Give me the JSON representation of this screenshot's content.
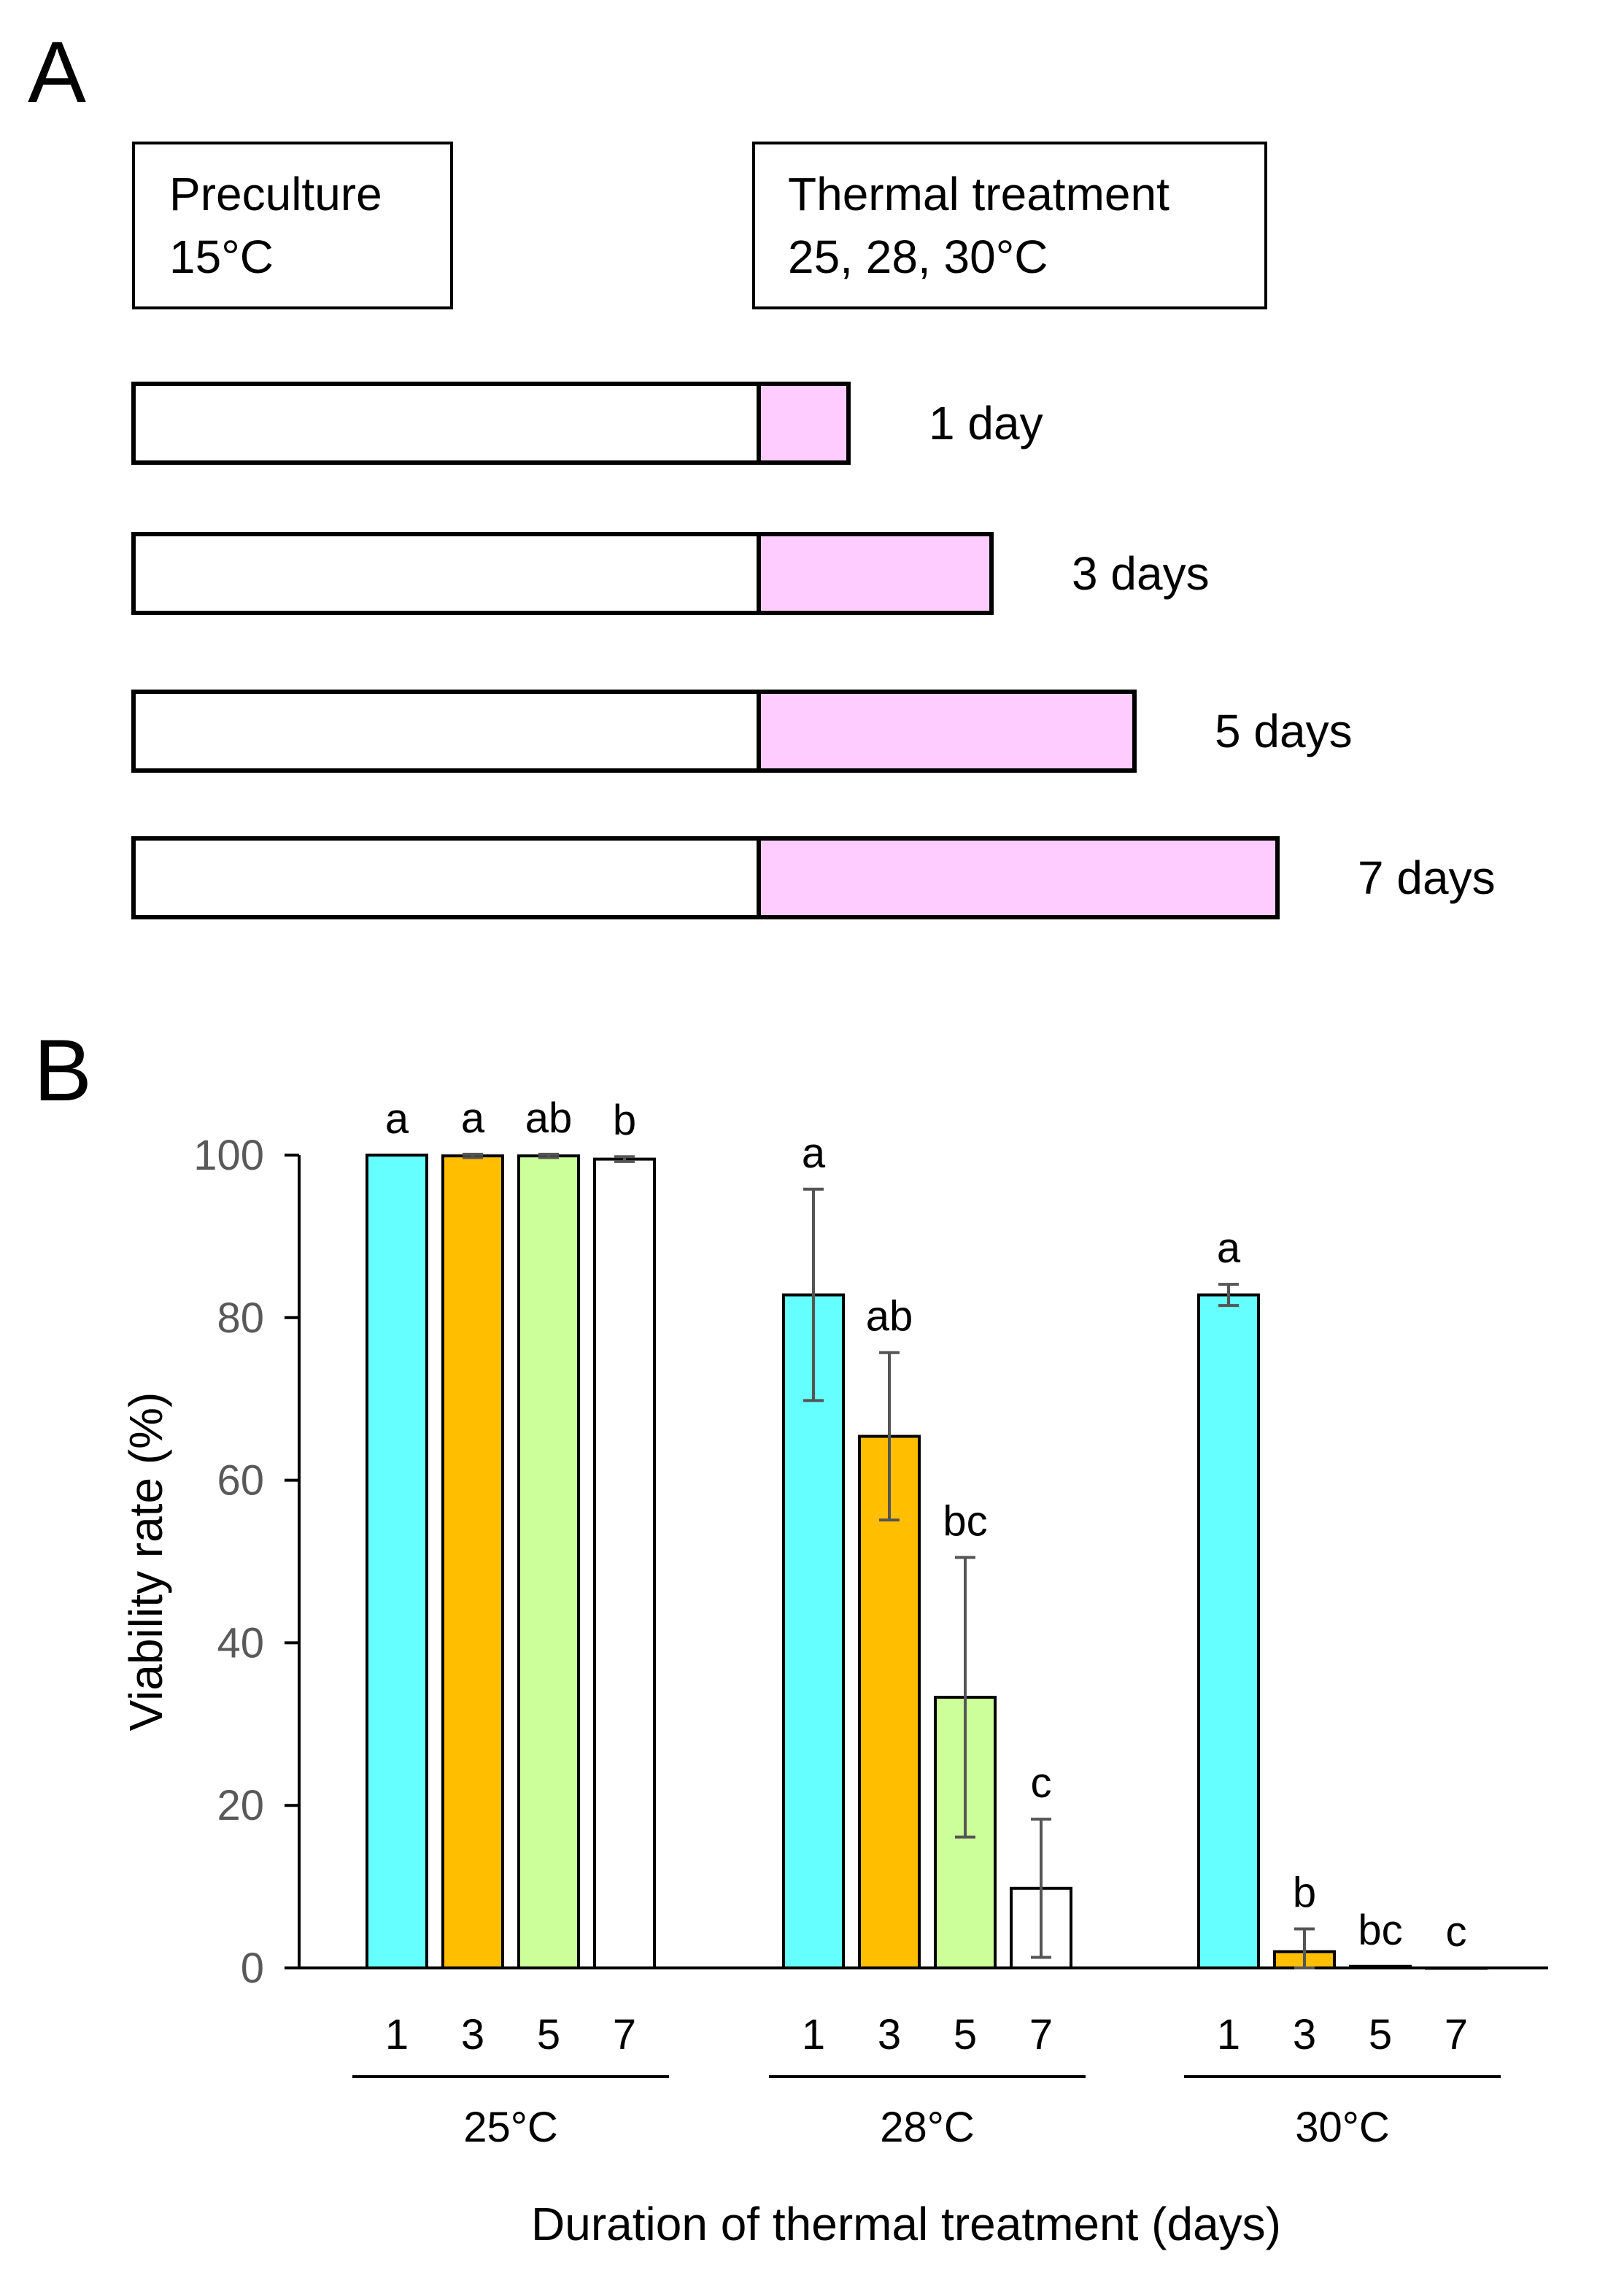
{
  "panel_a": {
    "label": "A",
    "preculture": {
      "line1": "Preculture",
      "line2": "15°C"
    },
    "thermal": {
      "line1": "Thermal treatment",
      "line2": "25, 28, 30°C"
    },
    "timeline": [
      {
        "days": 1,
        "label": "1 day"
      },
      {
        "days": 3,
        "label": "3 days"
      },
      {
        "days": 5,
        "label": "5 days"
      },
      {
        "days": 7,
        "label": "7 days"
      }
    ],
    "colors": {
      "preculture": "#ffffff",
      "thermal": "#ffccff"
    }
  },
  "chart_data": {
    "panel_label": "B",
    "type": "bar",
    "ylabel": "Viability rate (%)",
    "xlabel": "Duration of thermal treatment (days)",
    "ylim": [
      0,
      100
    ],
    "yticks": [
      0,
      20,
      40,
      60,
      80,
      100
    ],
    "duration_labels": [
      "1",
      "3",
      "5",
      "7"
    ],
    "duration_colors": [
      "#66ffff",
      "#ffbf00",
      "#ccff99",
      "#ffffff"
    ],
    "groups": [
      {
        "name": "25°C",
        "values": [
          100,
          99.9,
          99.9,
          99.5
        ],
        "errors": [
          0,
          0.2,
          0.2,
          0.3
        ],
        "letters": [
          "a",
          "a",
          "ab",
          "b"
        ]
      },
      {
        "name": "28°C",
        "values": [
          82.8,
          65.4,
          33.3,
          9.8
        ],
        "errors": [
          13,
          10.3,
          17.2,
          8.5
        ],
        "letters": [
          "a",
          "ab",
          "bc",
          "c"
        ]
      },
      {
        "name": "30°C",
        "values": [
          82.8,
          2.0,
          0.2,
          0
        ],
        "errors": [
          1.3,
          2.8,
          0,
          0
        ],
        "letters": [
          "a",
          "b",
          "bc",
          "c"
        ]
      }
    ]
  }
}
